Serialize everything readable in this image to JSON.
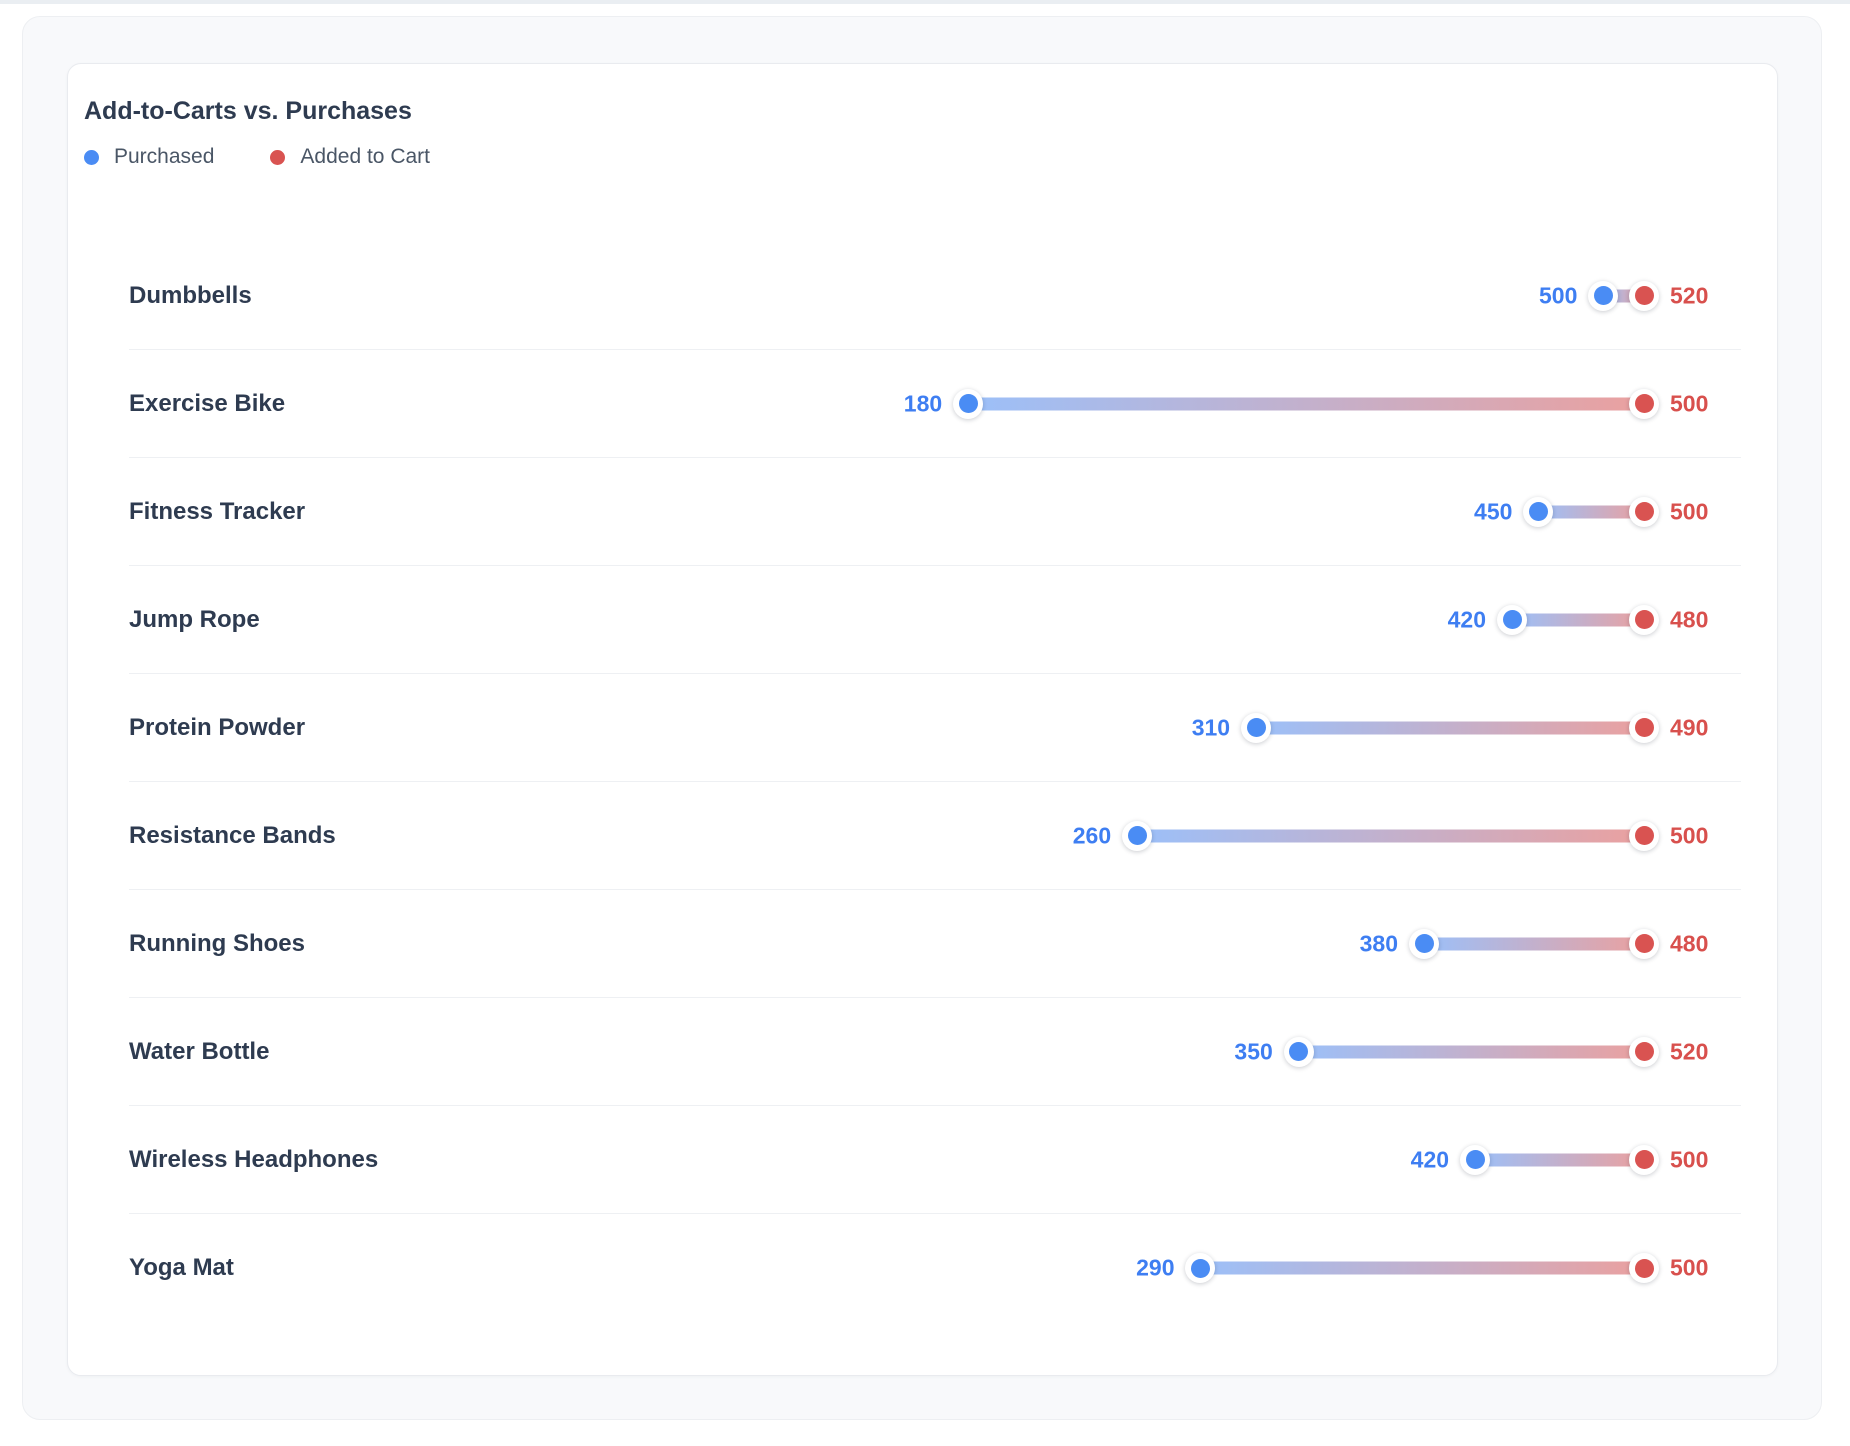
{
  "card": {
    "title": "Add-to-Carts vs. Purchases"
  },
  "legend": {
    "items": [
      {
        "label": "Purchased",
        "color": "#4a8cf4"
      },
      {
        "label": "Added to Cart",
        "color": "#d95351"
      }
    ]
  },
  "colors": {
    "purchased_dot": "#4a8cf4",
    "purchased_value_text": "#3e7ef2",
    "added_to_cart_dot": "#d95351",
    "added_to_cart_value_text": "#d8504d",
    "bar_gradient_start": "rgba(74,140,244,0.55)",
    "bar_gradient_end": "rgba(217,83,81,0.55)",
    "category_text": "#2e3b50",
    "row_divider": "#eef0f3"
  },
  "chart_data": {
    "type": "dumbbell",
    "title": "Add-to-Carts vs. Purchases",
    "orientation": "horizontal",
    "categories": [
      "Dumbbells",
      "Exercise Bike",
      "Fitness Tracker",
      "Jump Rope",
      "Protein Powder",
      "Resistance Bands",
      "Running Shoes",
      "Water Bottle",
      "Wireless Headphones",
      "Yoga Mat"
    ],
    "series": [
      {
        "name": "Purchased",
        "values": [
          500,
          180,
          450,
          420,
          310,
          260,
          380,
          350,
          420,
          290
        ]
      },
      {
        "name": "Added to Cart",
        "values": [
          520,
          500,
          500,
          480,
          490,
          500,
          480,
          520,
          500,
          500
        ]
      }
    ],
    "layout": {
      "legend_position": "top-left",
      "grid": false,
      "value_labels_shown": true,
      "added_to_cart_dot_anchored_right": true,
      "purchased_dot_position": "fraction purchased/added_to_cart of track width"
    }
  }
}
